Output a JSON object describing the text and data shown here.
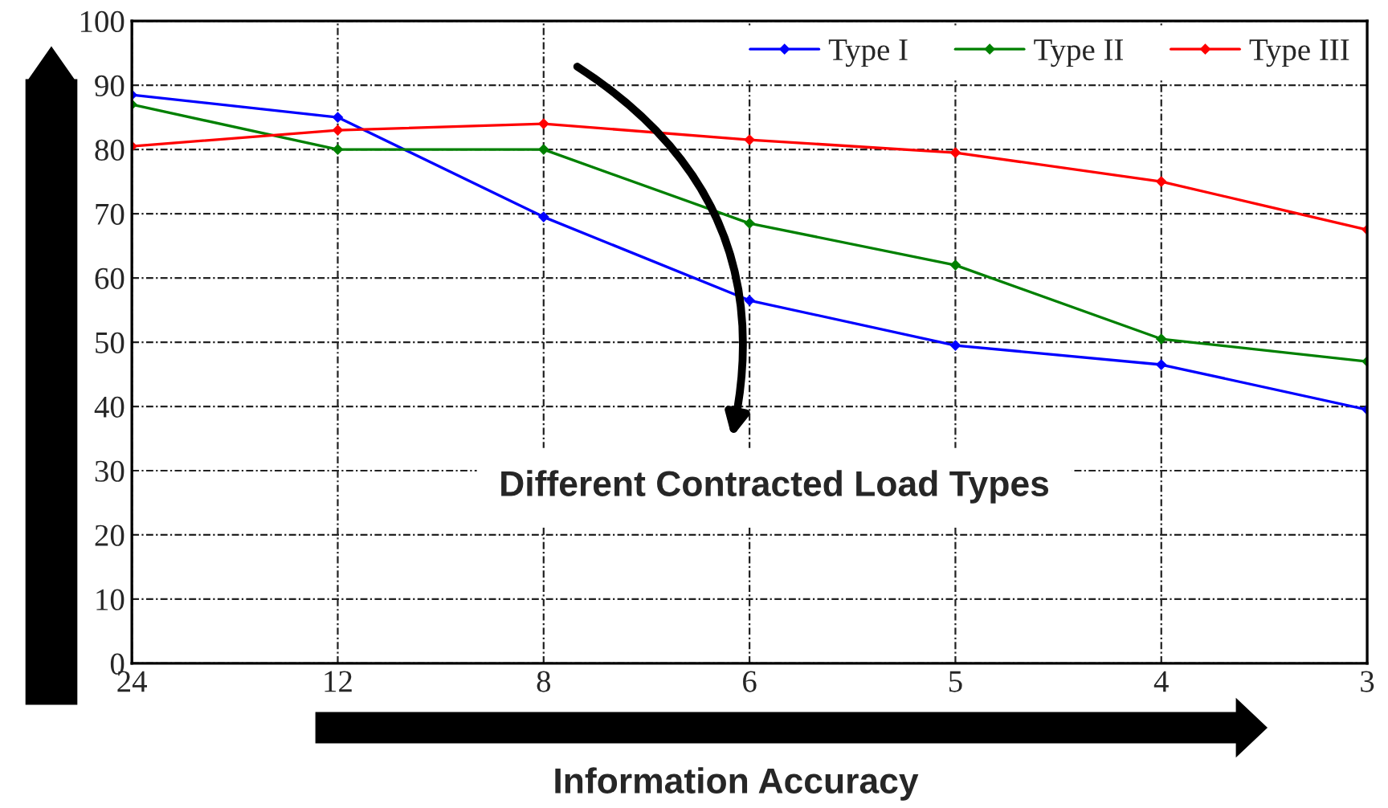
{
  "chart_data": {
    "type": "line",
    "categories": [
      "24",
      "12",
      "8",
      "6",
      "5",
      "4",
      "3"
    ],
    "series": [
      {
        "name": "Type I",
        "color": "#0000ff",
        "values": [
          88.5,
          85,
          69.5,
          56.5,
          49.5,
          46.5,
          39.5
        ]
      },
      {
        "name": "Type II",
        "color": "#008000",
        "values": [
          87,
          80,
          80,
          68.5,
          62,
          50.5,
          47
        ]
      },
      {
        "name": "Type III",
        "color": "#ff0000",
        "values": [
          80.5,
          83,
          84,
          81.5,
          79.5,
          75,
          67.5
        ]
      }
    ],
    "ylim": [
      0,
      100
    ],
    "yticks": [
      0,
      10,
      20,
      30,
      40,
      50,
      60,
      70,
      80,
      90,
      100
    ],
    "grid": true,
    "legend": "top right",
    "marker": "diamond",
    "line_style": "solid",
    "annotations": [
      "Different Contracted Load Types",
      "Information Accuracy"
    ]
  }
}
